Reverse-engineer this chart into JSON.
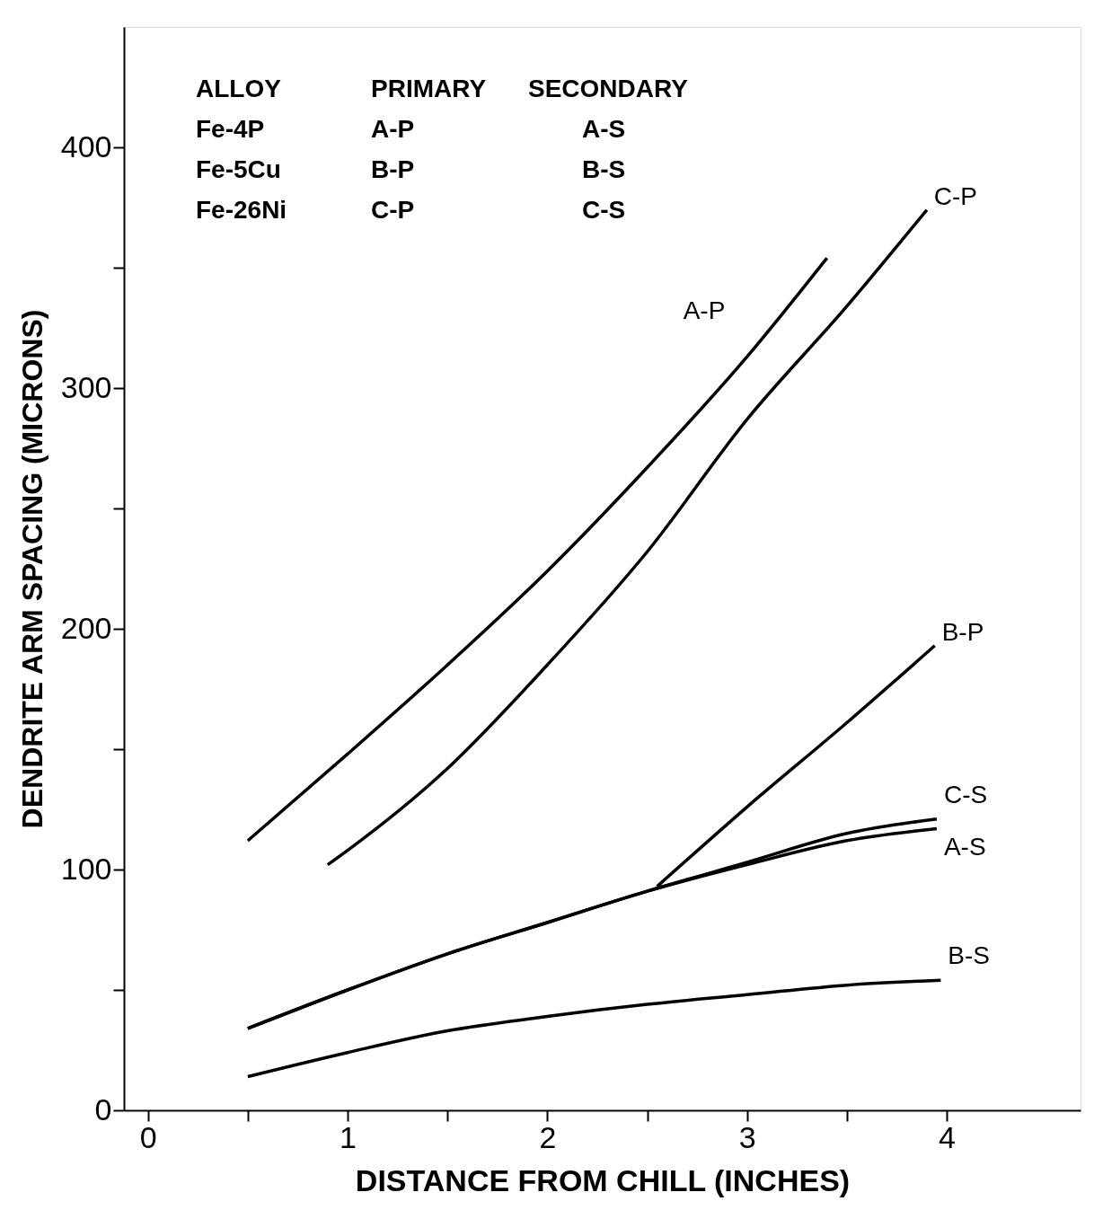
{
  "chart_data": {
    "type": "line",
    "xlabel": "DISTANCE FROM CHILL (INCHES)",
    "ylabel": "DENDRITE ARM SPACING (MICRONS)",
    "xlim": [
      -0.12,
      4.67
    ],
    "ylim": [
      0,
      450
    ],
    "xticks": [
      0,
      {
        "value": 0.5,
        "label": null
      },
      1,
      {
        "value": 1.5,
        "label": null
      },
      2,
      {
        "value": 2.5,
        "label": null
      },
      3,
      {
        "value": 3.5,
        "label": null
      },
      4
    ],
    "yticks": [
      0,
      {
        "value": 50,
        "label": null
      },
      100,
      {
        "value": 150,
        "label": null
      },
      200,
      {
        "value": 250,
        "label": null
      },
      300,
      {
        "value": 350,
        "label": null
      },
      400
    ],
    "grid": false,
    "marker": "none",
    "line_style": "solid",
    "series": [
      {
        "name": "A-P",
        "color": "#000000",
        "x": [
          0.5,
          1,
          1.5,
          2,
          2.5,
          3,
          3.4
        ],
        "values": [
          112,
          148,
          185,
          224,
          267,
          313,
          354
        ]
      },
      {
        "name": "C-P",
        "color": "#000000",
        "x": [
          0.9,
          1,
          1.5,
          2,
          2.5,
          3,
          3.5,
          3.9
        ],
        "values": [
          102,
          108,
          142,
          185,
          232,
          287,
          334,
          374
        ]
      },
      {
        "name": "B-P",
        "color": "#000000",
        "x": [
          2.55,
          3,
          3.5,
          3.94
        ],
        "values": [
          93,
          126,
          161,
          193
        ]
      },
      {
        "name": "C-S",
        "color": "#000000",
        "x": [
          0.5,
          1,
          1.5,
          2,
          2.5,
          3,
          3.5,
          3.95
        ],
        "values": [
          34,
          50,
          65,
          78,
          91,
          103,
          115,
          121
        ]
      },
      {
        "name": "A-S",
        "color": "#000000",
        "x": [
          0.5,
          1,
          1.5,
          2,
          2.5,
          3,
          3.5,
          3.95
        ],
        "values": [
          34,
          50,
          65,
          78,
          91,
          102,
          112,
          117
        ]
      },
      {
        "name": "B-S",
        "color": "#000000",
        "x": [
          0.5,
          1,
          1.5,
          2,
          2.5,
          3,
          3.5,
          3.97
        ],
        "values": [
          14,
          24,
          33,
          39,
          44,
          48,
          52,
          54
        ]
      }
    ],
    "annotations": [
      "ALLOY",
      "PRIMARY",
      "SECONDARY",
      "Fe-4P",
      "A-P",
      "A-S",
      "Fe-5Cu",
      "B-P",
      "B-S",
      "Fe-26Ni",
      "C-P",
      "C-S"
    ]
  }
}
